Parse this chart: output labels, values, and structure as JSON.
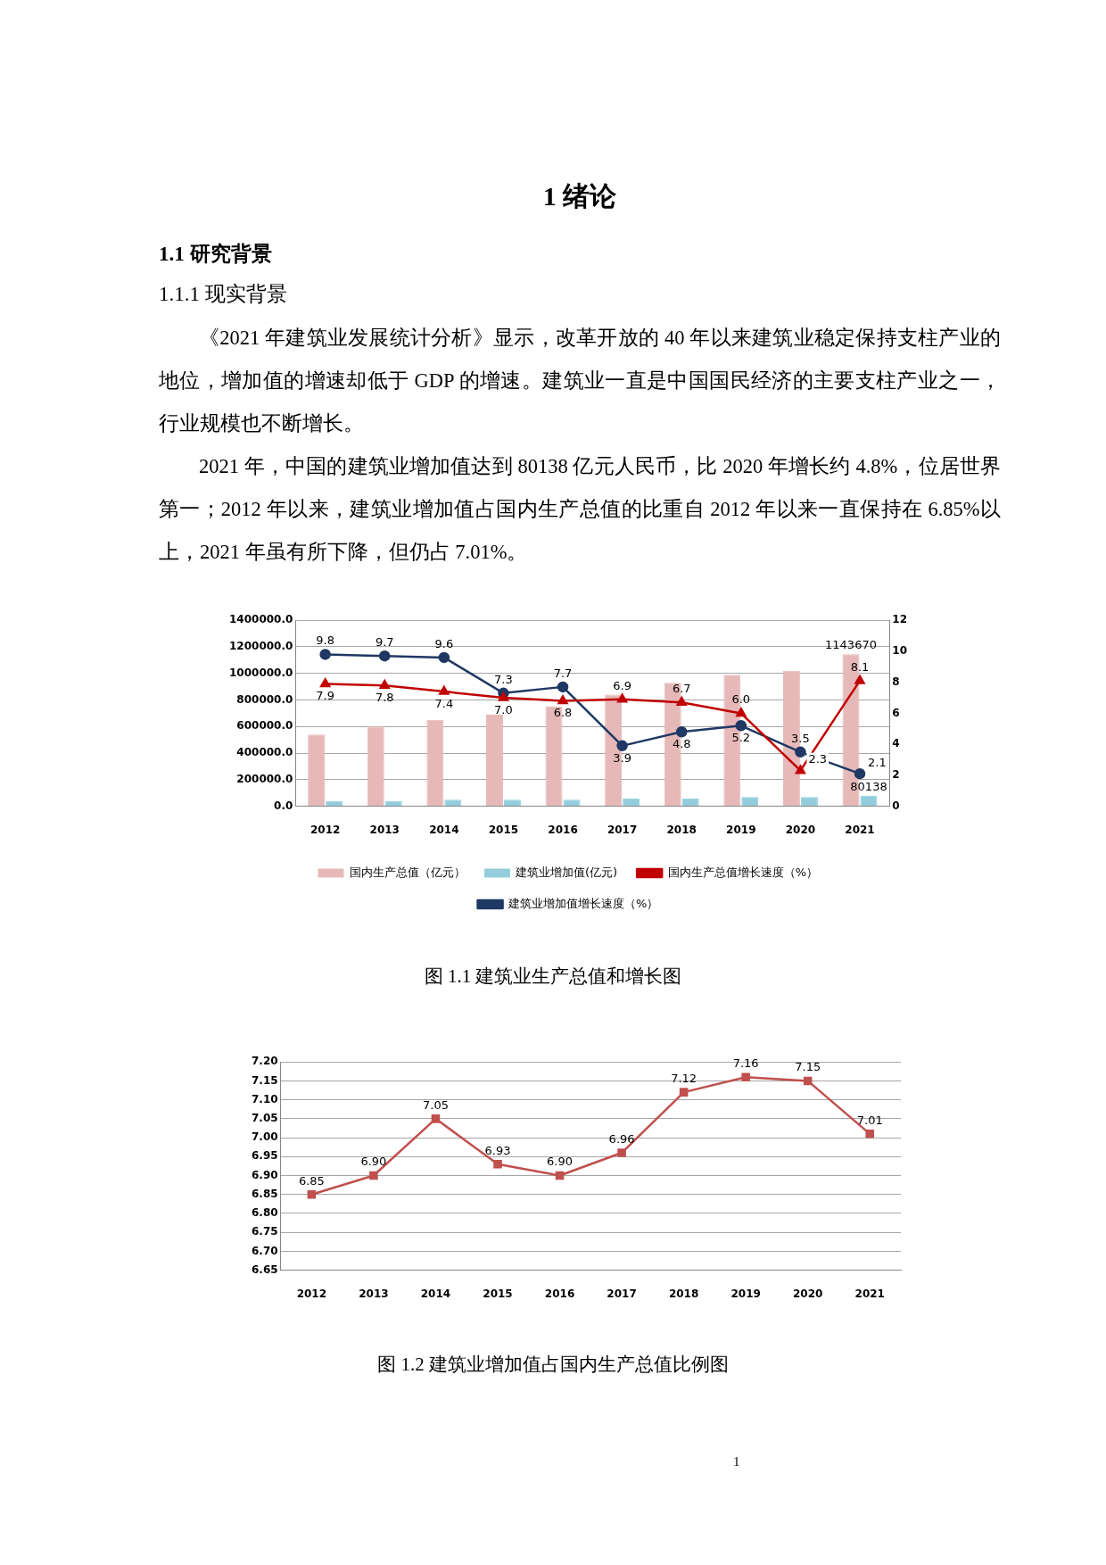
{
  "chart_data": [
    {
      "type": "bar",
      "title": "图 1.1 建筑业生产总值和增长图",
      "annotations": [
        "1 绪论",
        "1.1 研究背景",
        "1.1.1 现实背景",
        "《2021 年建筑业发展统计分析》显示，改革开放的 40 年以来建筑业稳定保持支柱产业的地位，增加值的增速却低于 GDP 的增速。建筑业一直是中国国民经济的主要支柱产业之一，行业规模也不断增长。",
        "2021 年，中国的建筑业增加值达到 80138 亿元人民币，比 2020 年增长约 4.8%，位居世界第一；2012 年以来，建筑业增加值占国内生产总值的比重自 2012 年以来一直保持在 6.85%以上，2021 年虽有所下降，但仍占 7.01%。"
      ],
      "categories": [
        "2012",
        "2013",
        "2014",
        "2015",
        "2016",
        "2017",
        "2018",
        "2019",
        "2020",
        "2021"
      ],
      "series": [
        {
          "name": "国内生产总值（亿元）",
          "type": "bar",
          "color": "#e6b9b8",
          "values": [
            540000,
            600000,
            650000,
            690000,
            750000,
            840000,
            930000,
            990000,
            1020000,
            1143670
          ],
          "value_labels": [
            null,
            null,
            null,
            null,
            null,
            null,
            null,
            null,
            null,
            "1143670"
          ]
        },
        {
          "name": "建筑业增加值(亿元)",
          "type": "bar",
          "color": "#93cddd",
          "values": [
            40000,
            40000,
            50000,
            50000,
            50000,
            60000,
            60000,
            70000,
            70000,
            80138
          ],
          "value_labels": [
            null,
            null,
            null,
            null,
            null,
            null,
            null,
            null,
            null,
            "80138"
          ]
        },
        {
          "name": "国内生产总值增长速度（%）",
          "type": "line",
          "axis": "y2",
          "color": "#c00000",
          "marker": "triangle",
          "values": [
            7.9,
            7.8,
            7.4,
            7.0,
            6.8,
            6.9,
            6.7,
            6.0,
            2.3,
            8.1
          ],
          "value_labels": [
            "7.9",
            "7.8",
            "7.4",
            "7.0",
            "6.8",
            "6.9",
            "6.7",
            "6.0",
            "2.3",
            "8.1"
          ]
        },
        {
          "name": "建筑业增加值增长速度（%）",
          "type": "line",
          "axis": "y2",
          "color": "#1f3864",
          "marker": "circle",
          "values": [
            9.8,
            9.7,
            9.6,
            7.3,
            7.7,
            3.9,
            4.8,
            5.2,
            3.5,
            2.1
          ],
          "value_labels": [
            "9.8",
            "9.7",
            "9.6",
            "7.3",
            "7.7",
            "3.9",
            "4.8",
            "5.2",
            "3.5",
            "2.1"
          ]
        }
      ],
      "ylim": [
        0,
        1400000
      ],
      "yticks": [
        {
          "value": 0,
          "label": "0.0"
        },
        {
          "value": 200000,
          "label": "200000.0"
        },
        {
          "value": 400000,
          "label": "400000.0"
        },
        {
          "value": 600000,
          "label": "600000.0"
        },
        {
          "value": 800000,
          "label": "800000.0"
        },
        {
          "value": 1000000,
          "label": "1000000.0"
        },
        {
          "value": 1200000,
          "label": "1200000.0"
        },
        {
          "value": 1400000,
          "label": "1400000.0"
        }
      ],
      "y2lim": [
        0,
        12
      ],
      "y2ticks": [
        0,
        2,
        4,
        6,
        8,
        10,
        12
      ],
      "grid": "y",
      "legend": "bottom"
    },
    {
      "type": "line",
      "title": "图 1.2 建筑业增加值占国内生产总值比例图",
      "annotations": [
        "1"
      ],
      "categories": [
        "2012",
        "2013",
        "2014",
        "2015",
        "2016",
        "2017",
        "2018",
        "2019",
        "2020",
        "2021"
      ],
      "series": [
        {
          "color": "#c0504d",
          "values": [
            6.85,
            6.9,
            7.05,
            6.93,
            6.9,
            6.96,
            7.12,
            7.16,
            7.15,
            7.01
          ],
          "value_labels": [
            "6.85",
            "6.90",
            "7.05",
            "6.93",
            "6.90",
            "6.96",
            "7.12",
            "7.16",
            "7.15",
            "7.01"
          ]
        }
      ],
      "ylim": [
        6.65,
        7.2
      ],
      "yticks": [
        {
          "value": 6.65,
          "label": "6.65"
        },
        {
          "value": 6.7,
          "label": "6.70"
        },
        {
          "value": 6.75,
          "label": "6.75"
        },
        {
          "value": 6.8,
          "label": "6.80"
        },
        {
          "value": 6.85,
          "label": "6.85"
        },
        {
          "value": 6.9,
          "label": "6.90"
        },
        {
          "value": 6.95,
          "label": "6.95"
        },
        {
          "value": 7.0,
          "label": "7.00"
        },
        {
          "value": 7.05,
          "label": "7.05"
        },
        {
          "value": 7.1,
          "label": "7.10"
        },
        {
          "value": 7.15,
          "label": "7.15"
        },
        {
          "value": 7.2,
          "label": "7.20"
        }
      ],
      "grid": "y",
      "marker": "square",
      "line_style": "solid"
    }
  ]
}
